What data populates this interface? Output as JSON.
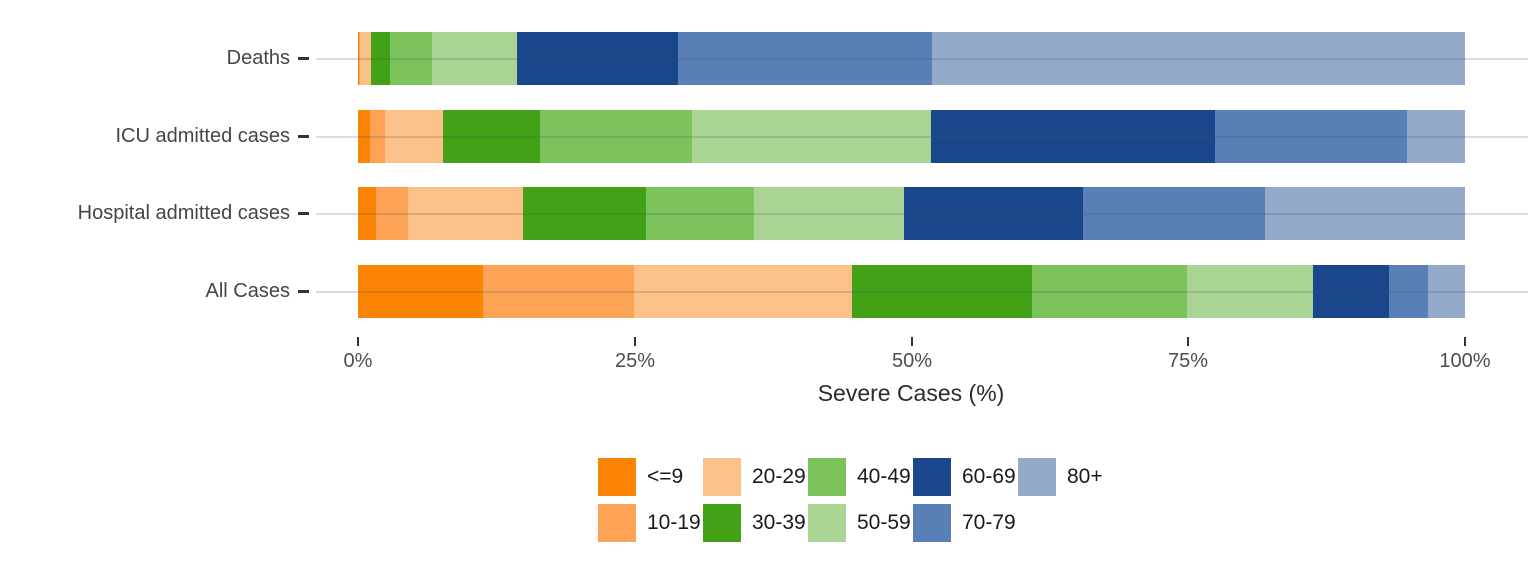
{
  "chart_data": {
    "type": "bar",
    "orientation": "horizontal",
    "stacked": true,
    "title": "",
    "xlabel": "Severe Cases (%)",
    "ylabel": "",
    "xlim": [
      0,
      100
    ],
    "x_tick_values": [
      0,
      25,
      50,
      75,
      100
    ],
    "x_tick_labels": [
      "0%",
      "25%",
      "50%",
      "75%",
      "100%"
    ],
    "grid": "horizontal",
    "legend_position": "bottom",
    "categories": [
      "Deaths",
      "ICU admitted cases",
      "Hospital admitted cases",
      "All Cases"
    ],
    "series": [
      {
        "name": "<=9",
        "color": "#FB8405",
        "values": [
          0.1,
          1.1,
          1.6,
          11.3
        ]
      },
      {
        "name": "10-19",
        "color": "#FDA356",
        "values": [
          0.1,
          1.3,
          2.9,
          13.6
        ]
      },
      {
        "name": "20-29",
        "color": "#FCC189",
        "values": [
          1.0,
          5.3,
          10.4,
          19.7
        ]
      },
      {
        "name": "30-39",
        "color": "#43A117",
        "values": [
          1.7,
          8.7,
          11.1,
          16.3
        ]
      },
      {
        "name": "40-49",
        "color": "#7CC35C",
        "values": [
          3.8,
          13.8,
          9.8,
          14.0
        ]
      },
      {
        "name": "50-59",
        "color": "#A9D494",
        "values": [
          7.7,
          21.6,
          13.5,
          11.4
        ]
      },
      {
        "name": "60-69",
        "color": "#1A478C",
        "values": [
          14.5,
          25.6,
          16.2,
          6.8
        ]
      },
      {
        "name": "70-79",
        "color": "#5880B6",
        "values": [
          23.0,
          17.4,
          16.4,
          3.6
        ]
      },
      {
        "name": "80+",
        "color": "#93AACB",
        "values": [
          48.1,
          5.2,
          18.1,
          3.3
        ]
      }
    ]
  }
}
